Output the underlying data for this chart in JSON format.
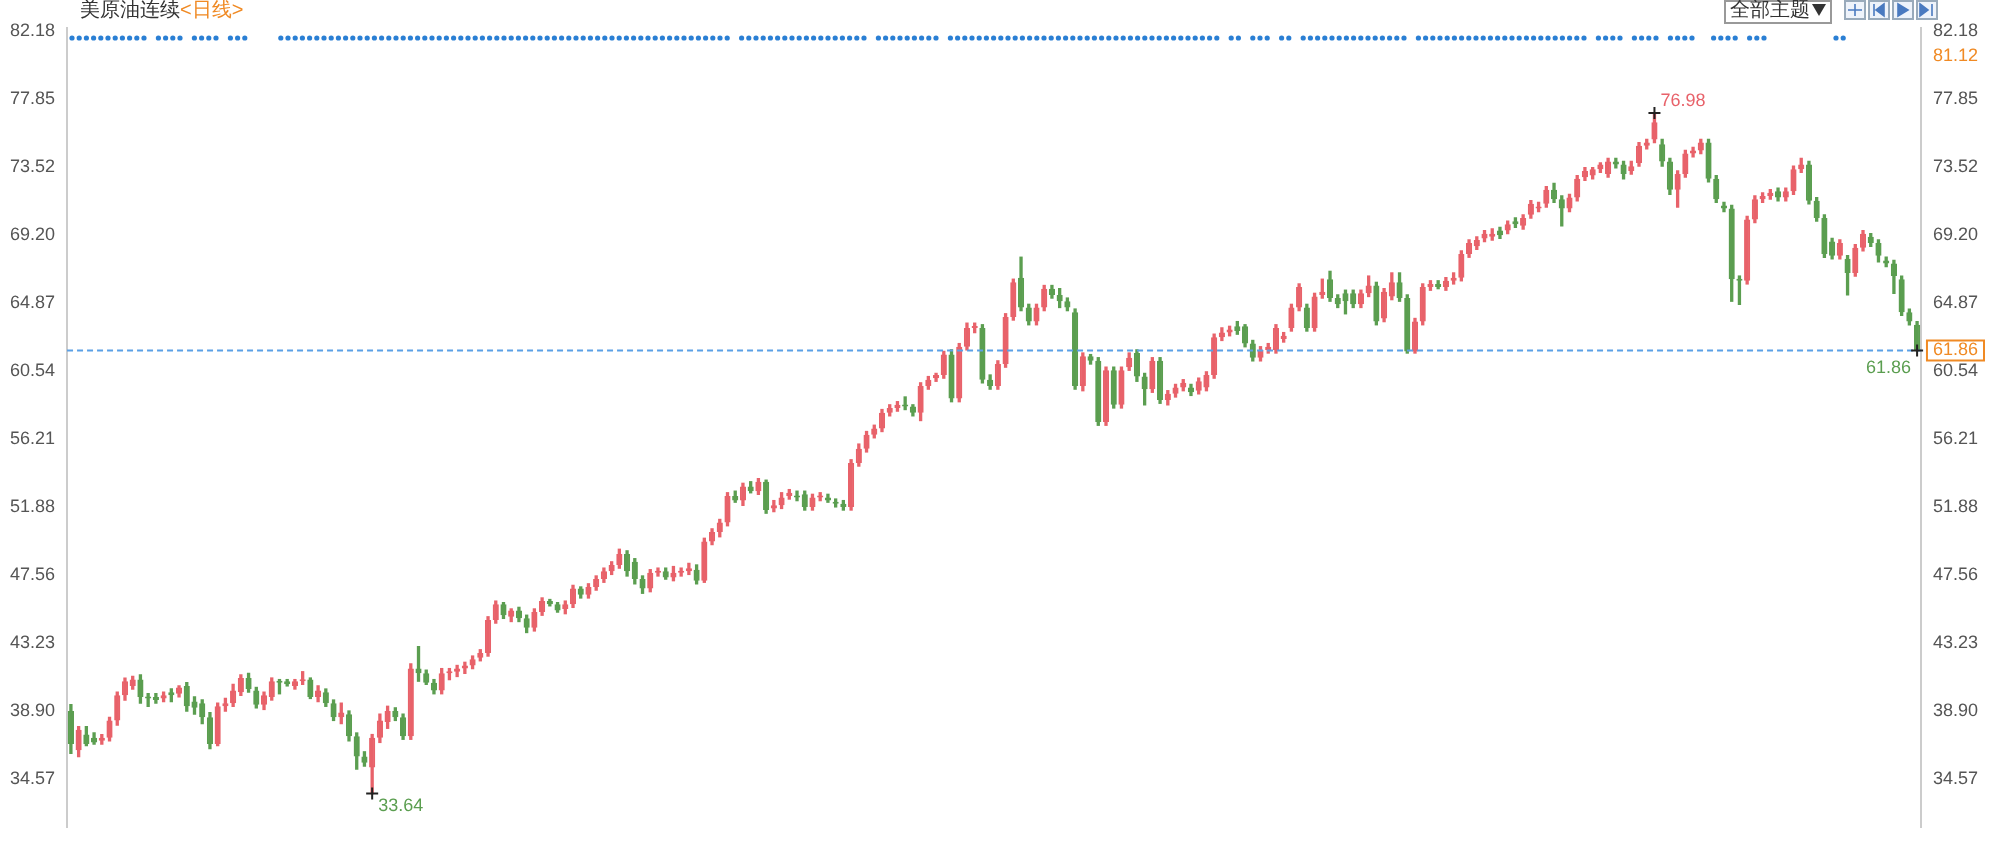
{
  "chart_data": {
    "type": "candlestick",
    "title": "美原油连续",
    "subtitle": "<日线>",
    "categories": [
      null,
      null,
      null,
      null,
      null,
      null,
      null,
      null,
      null,
      null,
      null,
      null,
      null,
      null,
      null,
      null,
      null,
      null,
      null,
      null,
      null,
      null,
      null,
      null,
      null,
      null,
      null,
      null,
      null,
      null,
      null,
      null,
      null,
      null,
      null,
      null,
      null,
      null,
      null,
      null,
      null,
      null,
      null,
      null,
      null,
      null,
      null,
      null,
      null,
      null,
      null,
      null,
      null,
      null,
      null,
      null,
      null,
      null,
      null,
      null,
      null,
      null,
      null,
      null,
      null,
      null,
      null,
      null,
      null,
      null,
      null,
      null,
      null,
      null,
      null,
      null,
      null,
      null,
      null,
      null,
      null,
      null,
      null,
      null,
      null,
      null,
      null,
      null,
      null,
      null,
      null,
      null,
      null,
      null,
      null,
      null,
      null,
      null,
      null,
      null,
      null,
      null,
      null,
      null,
      null,
      null,
      null,
      null,
      null,
      null,
      null,
      null,
      null,
      null,
      null,
      null,
      null,
      null,
      null,
      null,
      null,
      null,
      null,
      null,
      null,
      null,
      null,
      null,
      null,
      null,
      null,
      null,
      null,
      null,
      null,
      null,
      null,
      null,
      null,
      null,
      null,
      null,
      null,
      null,
      null,
      null,
      null,
      null,
      null,
      null,
      null,
      null,
      null,
      null,
      null,
      null,
      null,
      null,
      null,
      null,
      null,
      null,
      null,
      null,
      null,
      null,
      null,
      null,
      null,
      null,
      null,
      null,
      null,
      null,
      null,
      null,
      null,
      null,
      null,
      null,
      null,
      null,
      null,
      null,
      null,
      null,
      null,
      null,
      null,
      null,
      null,
      null,
      null,
      null,
      null,
      null,
      null,
      null,
      null,
      null,
      null,
      null,
      null,
      null,
      null,
      null,
      null,
      null,
      null,
      null,
      null,
      null,
      null,
      null,
      null,
      null,
      null,
      null,
      null,
      null,
      null,
      null,
      null,
      null,
      null,
      null,
      null,
      null,
      null,
      null,
      null,
      null,
      null,
      null,
      null,
      null,
      null,
      null,
      null,
      null
    ],
    "ohlc": [
      [
        38.9,
        39.3,
        36.2,
        36.8
      ],
      [
        36.4,
        37.9,
        36.0,
        37.7
      ],
      [
        37.4,
        37.9,
        36.7,
        36.8
      ],
      [
        37.2,
        37.5,
        36.8,
        36.9
      ],
      [
        37.0,
        37.4,
        36.8,
        37.2
      ],
      [
        37.2,
        38.5,
        37.0,
        38.3
      ],
      [
        38.3,
        40.1,
        38.0,
        39.9
      ],
      [
        39.9,
        41.0,
        39.6,
        40.8
      ],
      [
        40.5,
        41.1,
        40.3,
        40.9
      ],
      [
        40.9,
        41.2,
        39.4,
        39.8
      ],
      [
        39.8,
        40.0,
        39.2,
        39.7
      ],
      [
        39.8,
        40.0,
        39.4,
        39.6
      ],
      [
        39.7,
        40.1,
        39.5,
        39.9
      ],
      [
        40.1,
        40.3,
        39.5,
        39.9
      ],
      [
        40.0,
        40.5,
        39.8,
        40.4
      ],
      [
        40.5,
        40.7,
        38.9,
        39.2
      ],
      [
        39.5,
        39.8,
        38.7,
        39.1
      ],
      [
        39.4,
        39.6,
        38.1,
        38.5
      ],
      [
        38.5,
        38.8,
        36.5,
        36.8
      ],
      [
        36.8,
        39.4,
        36.7,
        39.2
      ],
      [
        39.2,
        39.7,
        38.9,
        39.4
      ],
      [
        39.4,
        40.6,
        39.2,
        40.2
      ],
      [
        40.1,
        41.2,
        39.9,
        41.0
      ],
      [
        41.0,
        41.3,
        40.1,
        40.3
      ],
      [
        40.2,
        40.4,
        39.1,
        39.3
      ],
      [
        39.3,
        40.1,
        39.0,
        39.9
      ],
      [
        39.8,
        41.0,
        39.6,
        40.8
      ],
      [
        40.8,
        40.9,
        40.0,
        40.7
      ],
      [
        40.8,
        40.9,
        40.5,
        40.6
      ],
      [
        40.5,
        40.9,
        40.3,
        40.8
      ],
      [
        40.8,
        41.4,
        40.6,
        40.9
      ],
      [
        40.9,
        41.0,
        39.7,
        39.8
      ],
      [
        39.8,
        40.5,
        39.5,
        40.2
      ],
      [
        40.1,
        40.3,
        39.2,
        39.4
      ],
      [
        39.4,
        39.6,
        38.3,
        38.5
      ],
      [
        38.5,
        39.4,
        38.1,
        38.8
      ],
      [
        38.7,
        38.9,
        37.0,
        37.3
      ],
      [
        37.3,
        37.5,
        35.2,
        36.0
      ],
      [
        36.0,
        36.3,
        35.4,
        35.6
      ],
      [
        35.3,
        37.4,
        33.64,
        37.2
      ],
      [
        37.2,
        38.7,
        36.9,
        38.3
      ],
      [
        38.2,
        39.2,
        37.8,
        38.9
      ],
      [
        38.9,
        39.1,
        38.3,
        38.5
      ],
      [
        38.5,
        38.7,
        37.1,
        37.3
      ],
      [
        37.3,
        41.9,
        37.1,
        41.6
      ],
      [
        41.6,
        43.0,
        40.8,
        41.3
      ],
      [
        41.3,
        41.5,
        40.6,
        40.7
      ],
      [
        40.7,
        40.9,
        40.0,
        40.2
      ],
      [
        40.2,
        41.6,
        40.0,
        41.3
      ],
      [
        41.3,
        41.6,
        40.9,
        41.4
      ],
      [
        41.4,
        41.8,
        41.1,
        41.6
      ],
      [
        41.6,
        42.0,
        41.3,
        41.8
      ],
      [
        41.8,
        42.4,
        41.6,
        42.2
      ],
      [
        42.3,
        42.8,
        42.1,
        42.6
      ],
      [
        42.6,
        44.9,
        42.4,
        44.7
      ],
      [
        44.7,
        45.9,
        44.5,
        45.7
      ],
      [
        45.7,
        45.8,
        44.8,
        45.0
      ],
      [
        44.9,
        45.4,
        44.6,
        45.3
      ],
      [
        45.3,
        45.5,
        44.6,
        44.8
      ],
      [
        44.8,
        45.0,
        43.9,
        44.2
      ],
      [
        44.2,
        45.4,
        44.0,
        45.2
      ],
      [
        45.2,
        46.1,
        45.0,
        45.9
      ],
      [
        45.9,
        46.0,
        45.6,
        45.7
      ],
      [
        45.7,
        45.8,
        45.2,
        45.3
      ],
      [
        45.4,
        45.9,
        45.1,
        45.7
      ],
      [
        45.7,
        46.9,
        45.5,
        46.7
      ],
      [
        46.7,
        46.8,
        46.1,
        46.3
      ],
      [
        46.3,
        47.0,
        46.1,
        46.8
      ],
      [
        46.8,
        47.5,
        46.6,
        47.3
      ],
      [
        47.3,
        48.0,
        47.1,
        47.8
      ],
      [
        47.8,
        48.4,
        47.6,
        48.2
      ],
      [
        48.2,
        49.2,
        48.0,
        48.9
      ],
      [
        48.9,
        49.1,
        47.5,
        47.8
      ],
      [
        48.4,
        48.6,
        47.0,
        47.3
      ],
      [
        47.3,
        47.5,
        46.4,
        46.7
      ],
      [
        46.7,
        47.9,
        46.5,
        47.7
      ],
      [
        47.7,
        48.0,
        47.5,
        47.8
      ],
      [
        47.8,
        48.0,
        47.3,
        47.4
      ],
      [
        47.4,
        48.1,
        47.2,
        47.7
      ],
      [
        47.7,
        48.0,
        47.5,
        47.8
      ],
      [
        47.8,
        48.3,
        47.6,
        48.0
      ],
      [
        47.9,
        48.2,
        47.0,
        47.2
      ],
      [
        47.2,
        49.9,
        47.1,
        49.7
      ],
      [
        49.7,
        50.5,
        49.5,
        50.3
      ],
      [
        50.3,
        51.1,
        50.0,
        50.9
      ],
      [
        50.9,
        52.8,
        50.7,
        52.6
      ],
      [
        52.6,
        52.9,
        52.2,
        52.3
      ],
      [
        52.3,
        53.4,
        52.0,
        53.2
      ],
      [
        53.2,
        53.5,
        52.8,
        52.9
      ],
      [
        52.9,
        53.7,
        52.7,
        53.5
      ],
      [
        53.5,
        53.6,
        51.5,
        51.7
      ],
      [
        51.8,
        52.3,
        51.6,
        52.0
      ],
      [
        52.0,
        52.8,
        51.8,
        52.5
      ],
      [
        52.6,
        53.0,
        52.4,
        52.8
      ],
      [
        52.6,
        52.9,
        52.3,
        52.5
      ],
      [
        52.7,
        52.9,
        51.7,
        51.9
      ],
      [
        51.9,
        52.7,
        51.7,
        52.5
      ],
      [
        52.5,
        52.8,
        52.3,
        52.6
      ],
      [
        52.5,
        52.7,
        52.2,
        52.3
      ],
      [
        52.2,
        52.4,
        51.9,
        52.1
      ],
      [
        52.1,
        52.3,
        51.7,
        51.9
      ],
      [
        51.9,
        54.9,
        51.7,
        54.7
      ],
      [
        54.7,
        55.9,
        54.5,
        55.6
      ],
      [
        55.6,
        56.7,
        55.4,
        56.5
      ],
      [
        56.5,
        57.1,
        56.3,
        56.9
      ],
      [
        56.9,
        58.1,
        56.7,
        57.9
      ],
      [
        57.9,
        58.4,
        57.7,
        58.2
      ],
      [
        58.2,
        58.6,
        58.0,
        58.4
      ],
      [
        58.4,
        58.9,
        58.1,
        58.3
      ],
      [
        58.3,
        58.4,
        57.7,
        57.9
      ],
      [
        57.9,
        59.8,
        57.4,
        59.6
      ],
      [
        59.6,
        60.2,
        59.4,
        60.0
      ],
      [
        60.1,
        60.4,
        59.9,
        60.3
      ],
      [
        60.3,
        61.8,
        60.1,
        61.6
      ],
      [
        61.6,
        61.9,
        58.6,
        58.8
      ],
      [
        58.8,
        62.3,
        58.6,
        62.1
      ],
      [
        62.1,
        63.6,
        61.9,
        63.3
      ],
      [
        63.3,
        63.6,
        63.0,
        63.4
      ],
      [
        63.3,
        63.5,
        59.8,
        60.0
      ],
      [
        60.0,
        60.3,
        59.4,
        59.6
      ],
      [
        59.6,
        61.2,
        59.4,
        61.0
      ],
      [
        61.0,
        64.2,
        60.8,
        64.0
      ],
      [
        64.0,
        66.4,
        63.8,
        66.2
      ],
      [
        66.5,
        67.8,
        64.4,
        64.6
      ],
      [
        64.6,
        64.8,
        63.5,
        63.7
      ],
      [
        63.7,
        64.8,
        63.5,
        64.6
      ],
      [
        64.6,
        66.0,
        64.4,
        65.8
      ],
      [
        65.8,
        66.0,
        65.2,
        65.4
      ],
      [
        65.4,
        65.8,
        64.6,
        65.0
      ],
      [
        65.0,
        65.2,
        64.4,
        64.6
      ],
      [
        64.3,
        64.5,
        59.4,
        59.6
      ],
      [
        59.6,
        61.7,
        59.3,
        61.5
      ],
      [
        61.5,
        61.6,
        61.0,
        61.2
      ],
      [
        61.2,
        61.4,
        57.1,
        57.3
      ],
      [
        57.3,
        60.8,
        57.1,
        60.6
      ],
      [
        60.6,
        60.8,
        58.2,
        58.4
      ],
      [
        58.4,
        60.8,
        58.2,
        60.6
      ],
      [
        60.8,
        61.7,
        60.6,
        61.4
      ],
      [
        61.7,
        61.9,
        59.9,
        60.2
      ],
      [
        60.2,
        60.4,
        58.4,
        59.4
      ],
      [
        59.4,
        61.4,
        59.2,
        61.2
      ],
      [
        61.2,
        61.4,
        58.5,
        58.7
      ],
      [
        58.7,
        59.3,
        58.4,
        59.1
      ],
      [
        59.1,
        59.7,
        58.9,
        59.5
      ],
      [
        59.5,
        60.0,
        59.3,
        59.8
      ],
      [
        59.5,
        59.7,
        59.0,
        59.2
      ],
      [
        59.3,
        60.1,
        59.1,
        59.9
      ],
      [
        59.5,
        60.5,
        59.3,
        60.3
      ],
      [
        60.3,
        62.9,
        60.1,
        62.7
      ],
      [
        62.7,
        63.3,
        62.5,
        63.0
      ],
      [
        63.0,
        63.4,
        62.8,
        63.2
      ],
      [
        63.4,
        63.7,
        62.9,
        63.1
      ],
      [
        63.4,
        63.5,
        62.1,
        62.3
      ],
      [
        62.3,
        62.5,
        61.2,
        61.4
      ],
      [
        61.4,
        62.1,
        61.2,
        61.9
      ],
      [
        61.9,
        62.3,
        61.7,
        62.1
      ],
      [
        61.9,
        63.5,
        61.7,
        63.3
      ],
      [
        62.6,
        63.0,
        62.4,
        62.8
      ],
      [
        63.3,
        64.8,
        63.1,
        64.6
      ],
      [
        64.6,
        66.1,
        64.4,
        65.9
      ],
      [
        64.6,
        64.8,
        63.1,
        63.3
      ],
      [
        63.3,
        65.5,
        63.1,
        65.3
      ],
      [
        65.4,
        66.4,
        65.2,
        65.6
      ],
      [
        66.4,
        66.9,
        65.0,
        65.2
      ],
      [
        65.2,
        65.4,
        64.6,
        64.8
      ],
      [
        65.5,
        65.7,
        64.2,
        65.0
      ],
      [
        65.5,
        65.7,
        64.6,
        64.8
      ],
      [
        64.8,
        65.7,
        64.6,
        65.5
      ],
      [
        65.5,
        66.6,
        65.3,
        66.0
      ],
      [
        66.0,
        66.2,
        63.5,
        63.7
      ],
      [
        63.9,
        65.8,
        63.7,
        65.6
      ],
      [
        65.3,
        66.8,
        65.1,
        66.2
      ],
      [
        66.2,
        66.8,
        65.0,
        65.2
      ],
      [
        65.2,
        65.4,
        61.7,
        61.8
      ],
      [
        61.8,
        63.9,
        61.7,
        63.7
      ],
      [
        63.7,
        66.1,
        63.5,
        65.9
      ],
      [
        65.9,
        66.3,
        65.7,
        66.1
      ],
      [
        66.1,
        66.3,
        65.8,
        65.9
      ],
      [
        65.9,
        66.5,
        65.7,
        66.3
      ],
      [
        66.3,
        66.8,
        66.1,
        66.5
      ],
      [
        66.5,
        68.2,
        66.3,
        68.0
      ],
      [
        68.0,
        68.9,
        67.8,
        68.7
      ],
      [
        68.5,
        69.1,
        68.3,
        68.9
      ],
      [
        69.0,
        69.5,
        68.8,
        69.3
      ],
      [
        69.1,
        69.6,
        68.9,
        69.3
      ],
      [
        69.5,
        69.7,
        69.0,
        69.2
      ],
      [
        69.5,
        70.1,
        69.3,
        69.9
      ],
      [
        70.1,
        70.3,
        69.7,
        69.9
      ],
      [
        69.8,
        70.5,
        69.6,
        70.3
      ],
      [
        70.5,
        71.4,
        70.3,
        71.2
      ],
      [
        70.9,
        71.3,
        70.7,
        71.0
      ],
      [
        71.2,
        72.3,
        71.0,
        72.1
      ],
      [
        72.1,
        72.5,
        71.3,
        71.5
      ],
      [
        71.5,
        71.7,
        69.8,
        70.9
      ],
      [
        70.9,
        71.8,
        70.7,
        71.6
      ],
      [
        71.6,
        73.0,
        71.4,
        72.8
      ],
      [
        72.9,
        73.5,
        72.7,
        73.3
      ],
      [
        73.0,
        73.5,
        72.8,
        73.4
      ],
      [
        73.4,
        73.8,
        73.2,
        73.7
      ],
      [
        73.1,
        74.1,
        72.9,
        73.9
      ],
      [
        73.9,
        74.1,
        73.5,
        73.7
      ],
      [
        73.7,
        73.9,
        72.8,
        73.1
      ],
      [
        73.3,
        73.9,
        73.1,
        73.6
      ],
      [
        73.8,
        75.1,
        73.6,
        74.9
      ],
      [
        74.9,
        75.3,
        74.7,
        75.1
      ],
      [
        75.3,
        76.98,
        75.1,
        76.4
      ],
      [
        75.0,
        75.3,
        73.6,
        73.9
      ],
      [
        73.9,
        74.1,
        71.8,
        72.1
      ],
      [
        72.1,
        73.3,
        71.0,
        73.1
      ],
      [
        73.1,
        74.6,
        72.9,
        74.4
      ],
      [
        74.4,
        74.8,
        74.2,
        74.6
      ],
      [
        74.6,
        75.3,
        74.4,
        75.1
      ],
      [
        75.1,
        75.3,
        72.6,
        72.8
      ],
      [
        72.8,
        73.0,
        71.3,
        71.5
      ],
      [
        71.1,
        71.3,
        70.7,
        70.9
      ],
      [
        70.9,
        71.1,
        65.0,
        66.4
      ],
      [
        66.4,
        66.6,
        64.8,
        66.3
      ],
      [
        66.3,
        70.4,
        66.1,
        70.2
      ],
      [
        70.2,
        71.7,
        70.0,
        71.5
      ],
      [
        71.5,
        71.9,
        71.3,
        71.7
      ],
      [
        71.7,
        72.1,
        71.5,
        71.9
      ],
      [
        72.0,
        72.2,
        71.4,
        71.6
      ],
      [
        71.6,
        72.2,
        71.4,
        72.0
      ],
      [
        72.0,
        73.6,
        71.8,
        73.4
      ],
      [
        73.4,
        74.1,
        73.2,
        73.7
      ],
      [
        73.7,
        73.9,
        71.2,
        71.4
      ],
      [
        71.4,
        71.6,
        70.1,
        70.3
      ],
      [
        70.3,
        70.5,
        67.8,
        68.0
      ],
      [
        68.8,
        69.0,
        67.7,
        67.9
      ],
      [
        67.9,
        68.9,
        67.7,
        68.7
      ],
      [
        67.7,
        67.9,
        65.4,
        66.8
      ],
      [
        66.8,
        68.6,
        66.6,
        68.4
      ],
      [
        68.4,
        69.5,
        68.2,
        69.3
      ],
      [
        69.1,
        69.3,
        68.5,
        68.7
      ],
      [
        68.7,
        68.9,
        67.5,
        67.9
      ],
      [
        67.6,
        67.8,
        67.2,
        67.4
      ],
      [
        67.4,
        67.6,
        65.5,
        66.6
      ],
      [
        66.4,
        66.6,
        64.1,
        64.3
      ],
      [
        64.3,
        64.5,
        63.5,
        63.7
      ],
      [
        63.5,
        63.7,
        61.86,
        61.86
      ]
    ],
    "ylim": [
      31.5,
      82.4
    ],
    "yticks": [
      34.57,
      {
        "value": 38.9,
        "label": "38.90"
      },
      43.23,
      47.56,
      51.88,
      56.21,
      60.54,
      64.87,
      {
        "value": 69.2,
        "label": "69.20"
      },
      73.52,
      77.85,
      82.18
    ],
    "y2lim": [
      31.5,
      82.4
    ],
    "y2ticks": [
      34.57,
      {
        "value": 38.9,
        "label": "38.90"
      },
      43.23,
      47.56,
      51.88,
      56.21,
      60.54,
      64.87,
      {
        "value": 69.2,
        "label": "69.20"
      },
      73.52,
      77.85,
      82.18
    ],
    "ref_lines": [
      {
        "axis": "y2",
        "value": 61.86,
        "label": "61.86",
        "color": "#5aa0e6",
        "line_style": "dashed"
      }
    ],
    "annotations": [
      "全部主题",
      "76.98",
      "33.64",
      {
        "text": "61.86",
        "y": 61.86
      },
      "81.12"
    ],
    "grid": false,
    "legend": false
  }
}
